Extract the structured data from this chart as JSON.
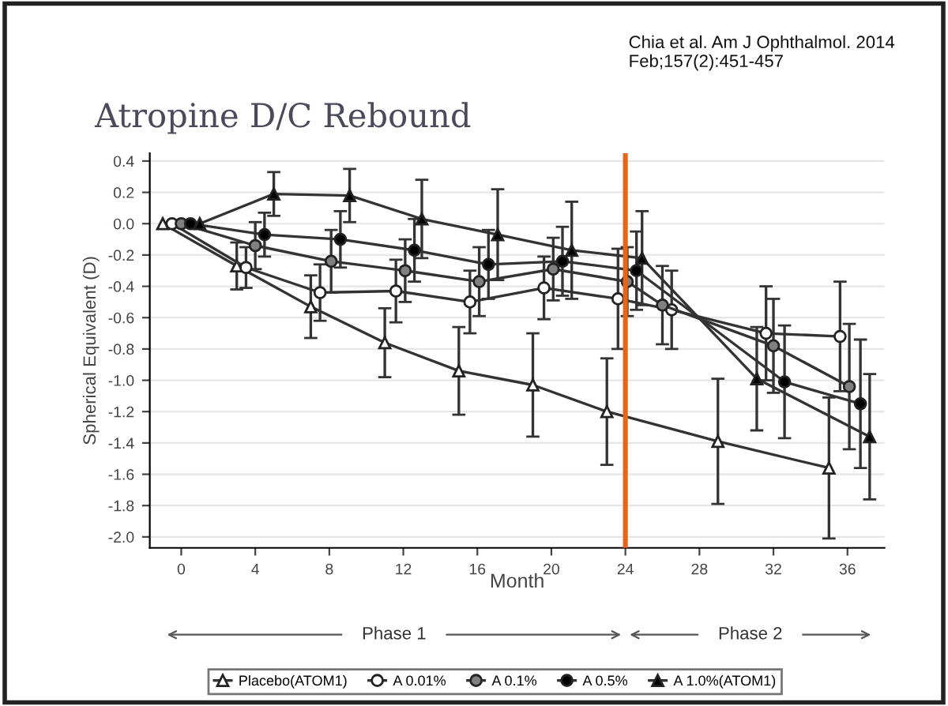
{
  "chart_data": {
    "type": "line",
    "title": "Atropine D/C Rebound",
    "xlabel": "Month",
    "ylabel": "Spherical Equivalent (D)",
    "annotations": [
      "Chia et al. Am J Ophthalmol. 2014 Feb;157(2):451-457",
      "Phase 1",
      "Phase 2"
    ],
    "series": [
      {
        "name": "Placebo(ATOM1)",
        "color": "#ffffff",
        "marker": "triangle",
        "x": [
          -1,
          3,
          7,
          11,
          15,
          19,
          23,
          29,
          35
        ],
        "values": [
          0,
          -0.27,
          -0.53,
          -0.76,
          -0.94,
          -1.03,
          -1.2,
          -1.39,
          -1.56
        ],
        "errors": [
          null,
          0.15,
          0.2,
          0.22,
          0.28,
          0.33,
          0.34,
          0.4,
          0.45
        ]
      },
      {
        "name": "A 0.01%",
        "color": "#ffffff",
        "marker": "circle",
        "x": [
          -0.5,
          3.5,
          7.5,
          11.6,
          15.6,
          19.6,
          23.6,
          26.5,
          31.6,
          35.6
        ],
        "values": [
          0,
          -0.28,
          -0.44,
          -0.43,
          -0.5,
          -0.41,
          -0.48,
          -0.55,
          -0.7,
          -0.72
        ],
        "errors": [
          null,
          0.13,
          0.18,
          0.2,
          0.2,
          0.2,
          0.32,
          0.25,
          0.3,
          0.35
        ]
      },
      {
        "name": "A 0.1%",
        "color": "#808080",
        "marker": "circle",
        "x": [
          0,
          4,
          8.1,
          12.1,
          16.1,
          20.1,
          24.1,
          26,
          32,
          36.1
        ],
        "values": [
          0,
          -0.14,
          -0.24,
          -0.3,
          -0.37,
          -0.29,
          -0.37,
          -0.52,
          -0.78,
          -1.04
        ],
        "errors": [
          null,
          0.15,
          0.2,
          0.2,
          0.22,
          0.2,
          0.22,
          0.25,
          0.3,
          0.4
        ]
      },
      {
        "name": "A 0.5%",
        "color": "#000000",
        "marker": "circle",
        "x": [
          0.5,
          4.5,
          8.6,
          12.6,
          16.6,
          20.6,
          24.6,
          32.6,
          36.7
        ],
        "values": [
          0,
          -0.07,
          -0.1,
          -0.17,
          -0.26,
          -0.24,
          -0.3,
          -1.01,
          -1.15
        ],
        "errors": [
          null,
          0.14,
          0.18,
          0.2,
          0.22,
          0.22,
          0.25,
          0.36,
          0.41
        ]
      },
      {
        "name": "A 1.0%(ATOM1)",
        "color": "#000000",
        "marker": "triangle",
        "x": [
          1,
          5,
          9.1,
          13,
          17.1,
          21.1,
          24.9,
          31.1,
          37.2
        ],
        "values": [
          0,
          0.19,
          0.18,
          0.03,
          -0.07,
          -0.17,
          -0.22,
          -0.99,
          -1.36
        ],
        "errors": [
          null,
          0.14,
          0.17,
          0.25,
          0.29,
          0.31,
          0.3,
          0.33,
          0.4
        ]
      }
    ],
    "xlim": [
      -1.7,
      38
    ],
    "ylim": [
      -2.07,
      0.45
    ],
    "xticks": [
      0,
      4,
      8,
      12,
      16,
      20,
      24,
      28,
      32,
      36
    ],
    "yticks": [
      0.4,
      0.2,
      {
        "value": 0,
        "label": "0.0"
      },
      -0.2,
      -0.4,
      -0.6,
      -0.8,
      {
        "value": -1,
        "label": "-1.0"
      },
      -1.2,
      -1.4,
      -1.6,
      -1.8,
      {
        "value": -2,
        "label": "-2.0"
      }
    ],
    "ref_lines": [
      {
        "axis": "x",
        "value": 24,
        "color": "#e8641b",
        "line_style": "solid"
      }
    ],
    "grid": "y",
    "legend": "bottom",
    "line_style": "solid"
  }
}
